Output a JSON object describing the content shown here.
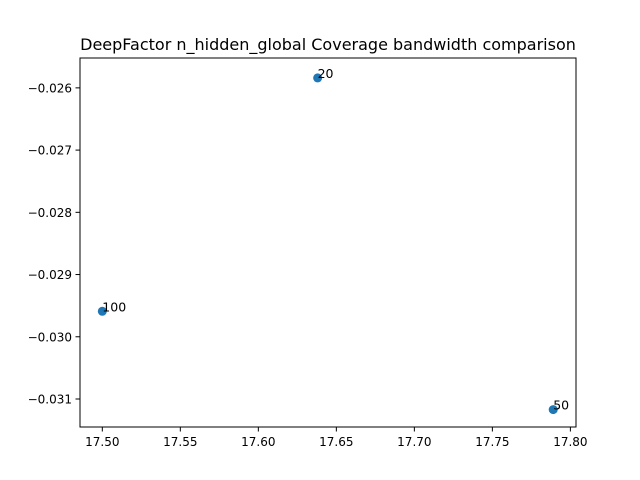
{
  "chart_data": {
    "type": "scatter",
    "title": "DeepFactor n_hidden_global Coverage bandwidth comparison",
    "xlabel": "",
    "ylabel": "",
    "xlim": [
      17.4857,
      17.8036
    ],
    "ylim": [
      -0.03145,
      -0.02552
    ],
    "xticks": [
      17.5,
      17.55,
      17.6,
      17.65,
      17.7,
      17.75,
      17.8
    ],
    "xtick_labels": [
      "17.50",
      "17.55",
      "17.60",
      "17.65",
      "17.70",
      "17.75",
      "17.80"
    ],
    "yticks": [
      -0.031,
      -0.03,
      -0.029,
      -0.028,
      -0.027,
      -0.026
    ],
    "ytick_labels": [
      "−0.031",
      "−0.030",
      "−0.029",
      "−0.028",
      "−0.027",
      "−0.026"
    ],
    "grid": false,
    "point_color": "#1f77b4",
    "points": [
      {
        "label": "20",
        "x": 17.638,
        "y": -0.02584
      },
      {
        "label": "100",
        "x": 17.5,
        "y": -0.02959
      },
      {
        "label": "50",
        "x": 17.789,
        "y": -0.03117
      }
    ]
  }
}
